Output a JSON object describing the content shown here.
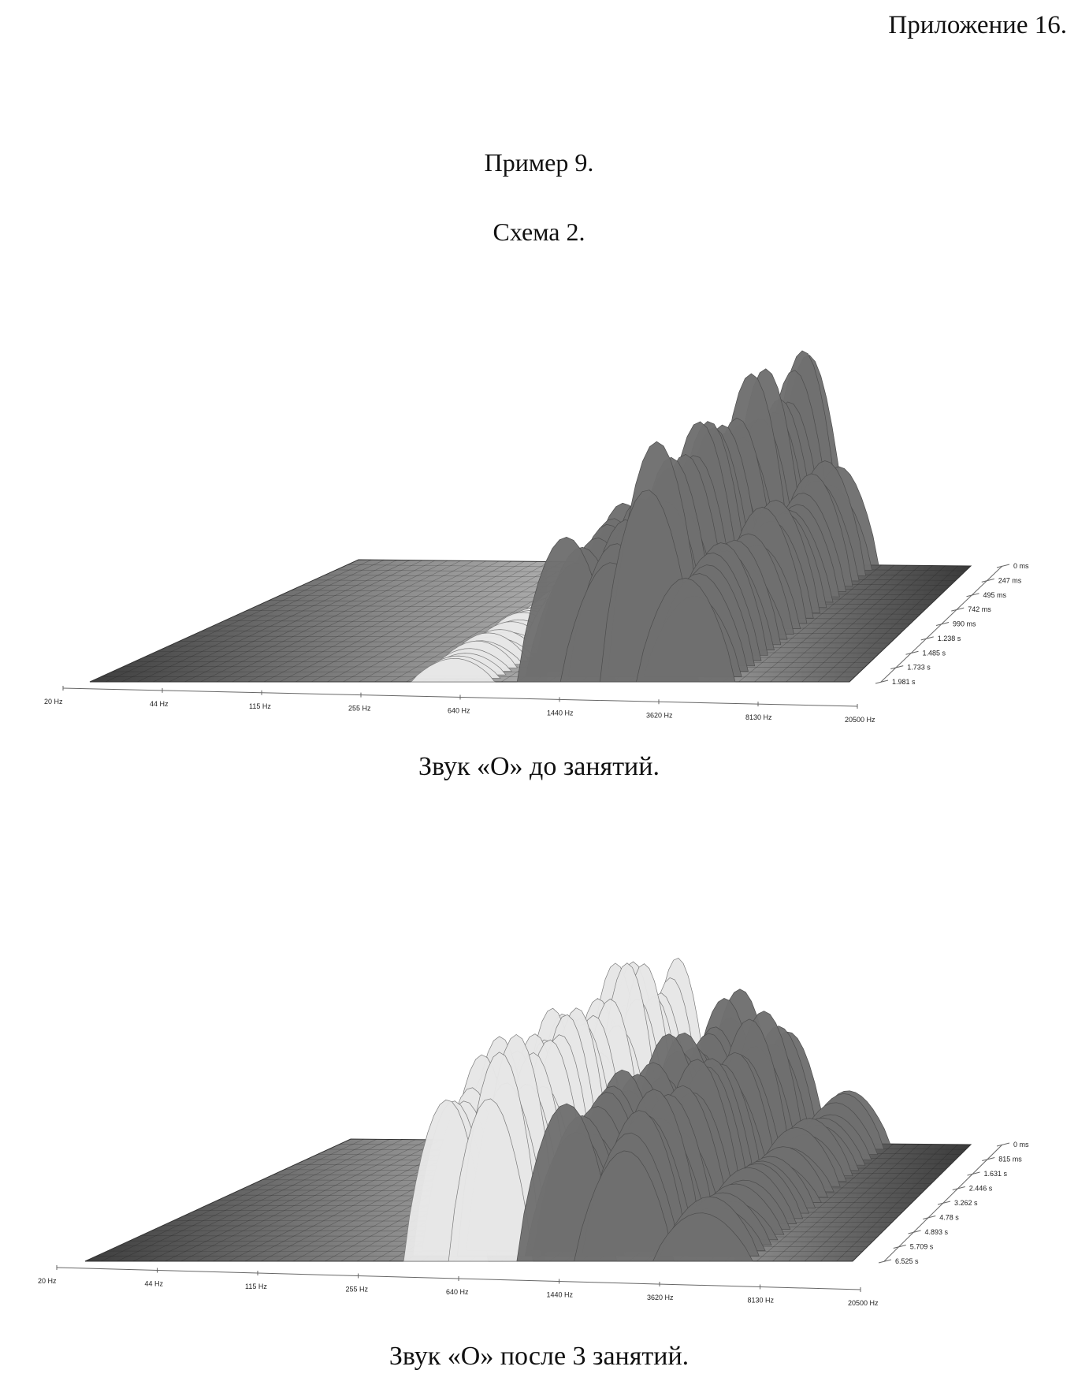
{
  "header": {
    "appendix": "Приложение 16.",
    "example": "Пример 9.",
    "scheme": "Схема 2."
  },
  "chart_data": [
    {
      "type": "waterfall-3d",
      "caption": "Звук «О» до занятий.",
      "x_tick_labels": [
        "20 Hz",
        "44 Hz",
        "115 Hz",
        "255 Hz",
        "640 Hz",
        "1440 Hz",
        "3620 Hz",
        "8130 Hz",
        "20500 Hz"
      ],
      "z_tick_labels": [
        "0 ms",
        "247 ms",
        "495 ms",
        "742 ms",
        "990 ms",
        "1.238 s",
        "1.485 s",
        "1.733 s",
        "1.981 s"
      ],
      "peaks": [
        {
          "freq_hz": 550,
          "rel_height": 0.12,
          "depth_span": [
            0.35,
            1.0
          ],
          "shade": "light"
        },
        {
          "freq_hz": 900,
          "rel_height": 0.3,
          "depth_span": [
            0.0,
            0.7
          ],
          "shade": "light"
        },
        {
          "freq_hz": 1550,
          "rel_height": 0.62,
          "depth_span": [
            0.0,
            1.0
          ],
          "shade": "dark"
        },
        {
          "freq_hz": 2300,
          "rel_height": 0.7,
          "depth_span": [
            0.0,
            1.0
          ],
          "shade": "dark"
        },
        {
          "freq_hz": 3300,
          "rel_height": 1.0,
          "depth_span": [
            0.0,
            1.0
          ],
          "shade": "dark"
        },
        {
          "freq_hz": 4600,
          "rel_height": 0.5,
          "depth_span": [
            0.0,
            1.0
          ],
          "shade": "dark"
        }
      ]
    },
    {
      "type": "waterfall-3d",
      "caption": "Звук «О» после 3 занятий.",
      "x_tick_labels": [
        "20 Hz",
        "44 Hz",
        "115 Hz",
        "255 Hz",
        "640 Hz",
        "1440 Hz",
        "3620 Hz",
        "8130 Hz",
        "20500 Hz"
      ],
      "z_tick_labels": [
        "0 ms",
        "815 ms",
        "1.631 s",
        "2.446 s",
        "3.262 s",
        "4.78 s",
        "4.893 s",
        "5.709 s",
        "6.525 s"
      ],
      "peaks": [
        {
          "freq_hz": 520,
          "rel_height": 0.92,
          "depth_span": [
            0.0,
            1.0
          ],
          "shade": "light"
        },
        {
          "freq_hz": 780,
          "rel_height": 1.0,
          "depth_span": [
            0.0,
            1.0
          ],
          "shade": "light"
        },
        {
          "freq_hz": 1550,
          "rel_height": 0.75,
          "depth_span": [
            0.0,
            1.0
          ],
          "shade": "dark"
        },
        {
          "freq_hz": 2600,
          "rel_height": 0.72,
          "depth_span": [
            0.0,
            1.0
          ],
          "shade": "dark"
        },
        {
          "freq_hz": 5300,
          "rel_height": 0.28,
          "depth_span": [
            0.0,
            1.0
          ],
          "shade": "dark"
        }
      ]
    }
  ]
}
